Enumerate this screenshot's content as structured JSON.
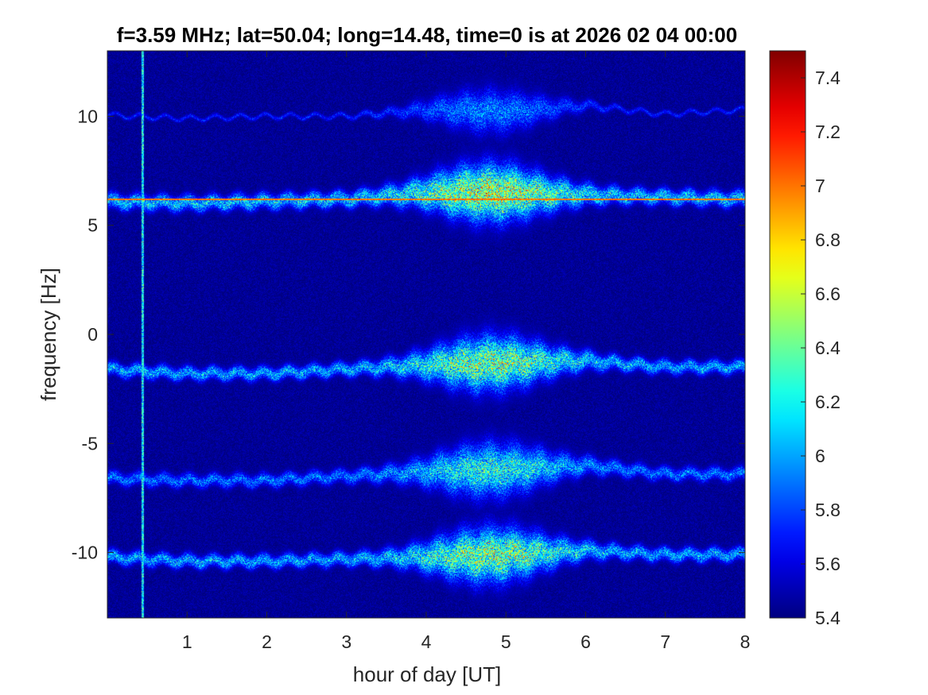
{
  "chart_data": {
    "type": "heatmap",
    "title": "f=3.59 MHz;  lat=50.04; long=14.48, time=0 is at 2026 02 04 00:00",
    "xlabel": "hour of day [UT]",
    "ylabel": "frequency [Hz]",
    "xlim": [
      0,
      8
    ],
    "ylim": [
      -13,
      13
    ],
    "xticks": [
      1,
      2,
      3,
      4,
      5,
      6,
      7,
      8
    ],
    "yticks": [
      10,
      5,
      0,
      -5,
      -10
    ],
    "colorbar": {
      "clim": [
        5.4,
        7.5
      ],
      "ticks": [
        7.4,
        7.2,
        7,
        6.8,
        6.6,
        6.4,
        6.2,
        6,
        5.8,
        5.6,
        5.4
      ],
      "colormap": "jet"
    },
    "features": {
      "vertical_interference_hour": 0.44,
      "horizontal_interference_hz": 6.2,
      "traces": [
        {
          "points": [
            [
              0,
              10.05
            ],
            [
              1,
              9.9
            ],
            [
              2,
              10.0
            ],
            [
              3,
              10.0
            ],
            [
              4,
              10.3
            ],
            [
              5,
              10.2
            ],
            [
              6,
              10.5
            ],
            [
              7,
              10.1
            ],
            [
              8,
              10.3
            ]
          ],
          "strength": 5.9,
          "spread": 0.1
        },
        {
          "points": [
            [
              0,
              6.1
            ],
            [
              1,
              6.0
            ],
            [
              2,
              6.1
            ],
            [
              3,
              6.2
            ],
            [
              4,
              6.5
            ],
            [
              5,
              6.5
            ],
            [
              6,
              6.4
            ],
            [
              7,
              6.3
            ],
            [
              8,
              6.2
            ]
          ],
          "strength": 6.5,
          "spread": 0.35
        },
        {
          "points": [
            [
              0,
              -1.6
            ],
            [
              1,
              -1.8
            ],
            [
              2,
              -1.8
            ],
            [
              3,
              -1.6
            ],
            [
              4,
              -1.4
            ],
            [
              5,
              -1.3
            ],
            [
              6,
              -1.2
            ],
            [
              7,
              -1.5
            ],
            [
              8,
              -1.5
            ]
          ],
          "strength": 6.4,
          "spread": 0.3
        },
        {
          "points": [
            [
              0,
              -6.6
            ],
            [
              1,
              -6.7
            ],
            [
              2,
              -6.7
            ],
            [
              3,
              -6.5
            ],
            [
              4,
              -6.3
            ],
            [
              5,
              -6.2
            ],
            [
              6,
              -6.0
            ],
            [
              7,
              -6.4
            ],
            [
              8,
              -6.4
            ]
          ],
          "strength": 6.2,
          "spread": 0.3
        },
        {
          "points": [
            [
              0,
              -10.2
            ],
            [
              1,
              -10.4
            ],
            [
              2,
              -10.4
            ],
            [
              3,
              -10.3
            ],
            [
              4,
              -10.2
            ],
            [
              5,
              -10.1
            ],
            [
              6,
              -9.9
            ],
            [
              7,
              -10.1
            ],
            [
              8,
              -10.1
            ]
          ],
          "strength": 6.4,
          "spread": 0.3
        }
      ],
      "broadening": {
        "center_hour": 4.8,
        "width_hours": 0.9,
        "max_spread_hz": 0.9
      }
    }
  }
}
